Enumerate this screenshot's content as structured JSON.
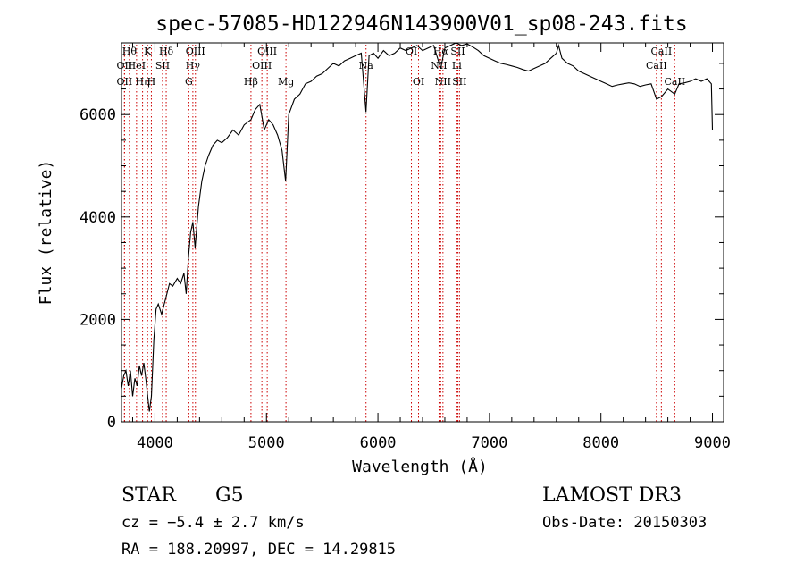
{
  "chart_data": {
    "type": "line",
    "title": "spec-57085-HD122946N143900V01_sp08-243.fits",
    "xlabel": "Wavelength (Å)",
    "ylabel": "Flux (relative)",
    "xlim": [
      3700,
      9100
    ],
    "ylim": [
      0,
      7400
    ],
    "x_ticks": [
      4000,
      5000,
      6000,
      7000,
      8000,
      9000
    ],
    "y_ticks": [
      0,
      2000,
      4000,
      6000
    ],
    "grid": false,
    "series_color": "#000000",
    "line_color": "#cc0000",
    "series": [
      {
        "x": [
          3700,
          3720,
          3740,
          3760,
          3780,
          3800,
          3820,
          3840,
          3860,
          3880,
          3900,
          3920,
          3935,
          3950,
          3968,
          3990,
          4010,
          4030,
          4060,
          4101,
          4130,
          4160,
          4200,
          4230,
          4260,
          4280,
          4300,
          4320,
          4340,
          4360,
          4390,
          4420,
          4450,
          4480,
          4520,
          4560,
          4600,
          4650,
          4700,
          4750,
          4800,
          4861,
          4900,
          4940,
          4980,
          5020,
          5060,
          5100,
          5140,
          5172,
          5200,
          5250,
          5300,
          5350,
          5400,
          5450,
          5500,
          5550,
          5600,
          5650,
          5700,
          5750,
          5800,
          5850,
          5893,
          5920,
          5960,
          6000,
          6050,
          6100,
          6150,
          6200,
          6250,
          6300,
          6350,
          6400,
          6450,
          6500,
          6563,
          6600,
          6650,
          6700,
          6750,
          6800,
          6850,
          6900,
          6950,
          7000,
          7050,
          7100,
          7150,
          7200,
          7250,
          7300,
          7350,
          7400,
          7450,
          7500,
          7550,
          7600,
          7620,
          7650,
          7700,
          7750,
          7800,
          7850,
          7900,
          7950,
          8000,
          8050,
          8100,
          8150,
          8200,
          8250,
          8300,
          8350,
          8400,
          8450,
          8498,
          8542,
          8600,
          8662,
          8700,
          8750,
          8800,
          8850,
          8900,
          8950,
          8990,
          9000
        ],
        "y": [
          650,
          900,
          1000,
          700,
          1000,
          500,
          850,
          700,
          1100,
          900,
          1150,
          800,
          500,
          200,
          500,
          1600,
          2200,
          2300,
          2100,
          2450,
          2700,
          2650,
          2800,
          2700,
          2900,
          2500,
          3200,
          3700,
          3900,
          3400,
          4200,
          4700,
          5000,
          5200,
          5400,
          5500,
          5450,
          5550,
          5700,
          5600,
          5800,
          5900,
          6100,
          6200,
          5700,
          5900,
          5800,
          5600,
          5300,
          4700,
          6000,
          6300,
          6400,
          6600,
          6650,
          6750,
          6800,
          6900,
          7000,
          6950,
          7050,
          7100,
          7150,
          7200,
          6050,
          7150,
          7200,
          7100,
          7250,
          7150,
          7200,
          7300,
          7250,
          7300,
          7350,
          7250,
          7300,
          7350,
          6900,
          7300,
          7350,
          7400,
          7350,
          7380,
          7320,
          7250,
          7150,
          7100,
          7050,
          7000,
          6980,
          6950,
          6920,
          6880,
          6850,
          6900,
          6950,
          7000,
          7100,
          7200,
          7350,
          7100,
          7000,
          6950,
          6850,
          6800,
          6750,
          6700,
          6650,
          6600,
          6550,
          6580,
          6600,
          6620,
          6600,
          6550,
          6580,
          6600,
          6300,
          6350,
          6500,
          6400,
          6600,
          6620,
          6650,
          6700,
          6650,
          6700,
          6600,
          5700
        ]
      }
    ],
    "lines": [
      {
        "x": 3771,
        "label": "Hθ",
        "row": 1
      },
      {
        "x": 3727,
        "label": "OII",
        "row": 2
      },
      {
        "x": 3727,
        "label": "OII",
        "row": 3
      },
      {
        "x": 3835,
        "label": "HeI",
        "row": 2
      },
      {
        "x": 3889,
        "label": "Hη",
        "row": 3
      },
      {
        "x": 3934,
        "label": "K",
        "row": 1
      },
      {
        "x": 3968,
        "label": "H",
        "row": 3
      },
      {
        "x": 4068,
        "label": "SII",
        "row": 2
      },
      {
        "x": 4101,
        "label": "Hδ",
        "row": 1
      },
      {
        "x": 4340,
        "label": "Hγ",
        "row": 2
      },
      {
        "x": 4304,
        "label": "G",
        "row": 3
      },
      {
        "x": 4363,
        "label": "OIII",
        "row": 1
      },
      {
        "x": 4861,
        "label": "Hβ",
        "row": 3
      },
      {
        "x": 4959,
        "label": "OIII",
        "row": 2
      },
      {
        "x": 5007,
        "label": "OIII",
        "row": 1
      },
      {
        "x": 5175,
        "label": "Mg",
        "row": 3
      },
      {
        "x": 5893,
        "label": "Na",
        "row": 2
      },
      {
        "x": 6300,
        "label": "OI",
        "row": 1
      },
      {
        "x": 6364,
        "label": "OI",
        "row": 3
      },
      {
        "x": 6548,
        "label": "NII",
        "row": 2
      },
      {
        "x": 6563,
        "label": "Hα",
        "row": 1
      },
      {
        "x": 6583,
        "label": "NII",
        "row": 3
      },
      {
        "x": 6707,
        "label": "Li",
        "row": 2
      },
      {
        "x": 6716,
        "label": "SII",
        "row": 1
      },
      {
        "x": 6731,
        "label": "SII",
        "row": 3
      },
      {
        "x": 8498,
        "label": "CaII",
        "row": 2
      },
      {
        "x": 8542,
        "label": "CaII",
        "row": 1
      },
      {
        "x": 8662,
        "label": "CaII",
        "row": 3
      }
    ]
  },
  "info": {
    "class": "STAR",
    "subclass": "G5",
    "survey": "LAMOST DR3",
    "cz": "cz = −5.4 ± 2.7 km/s",
    "obs_date": "Obs-Date: 20150303",
    "coords": "RA = 188.20997, DEC =  14.29815"
  }
}
